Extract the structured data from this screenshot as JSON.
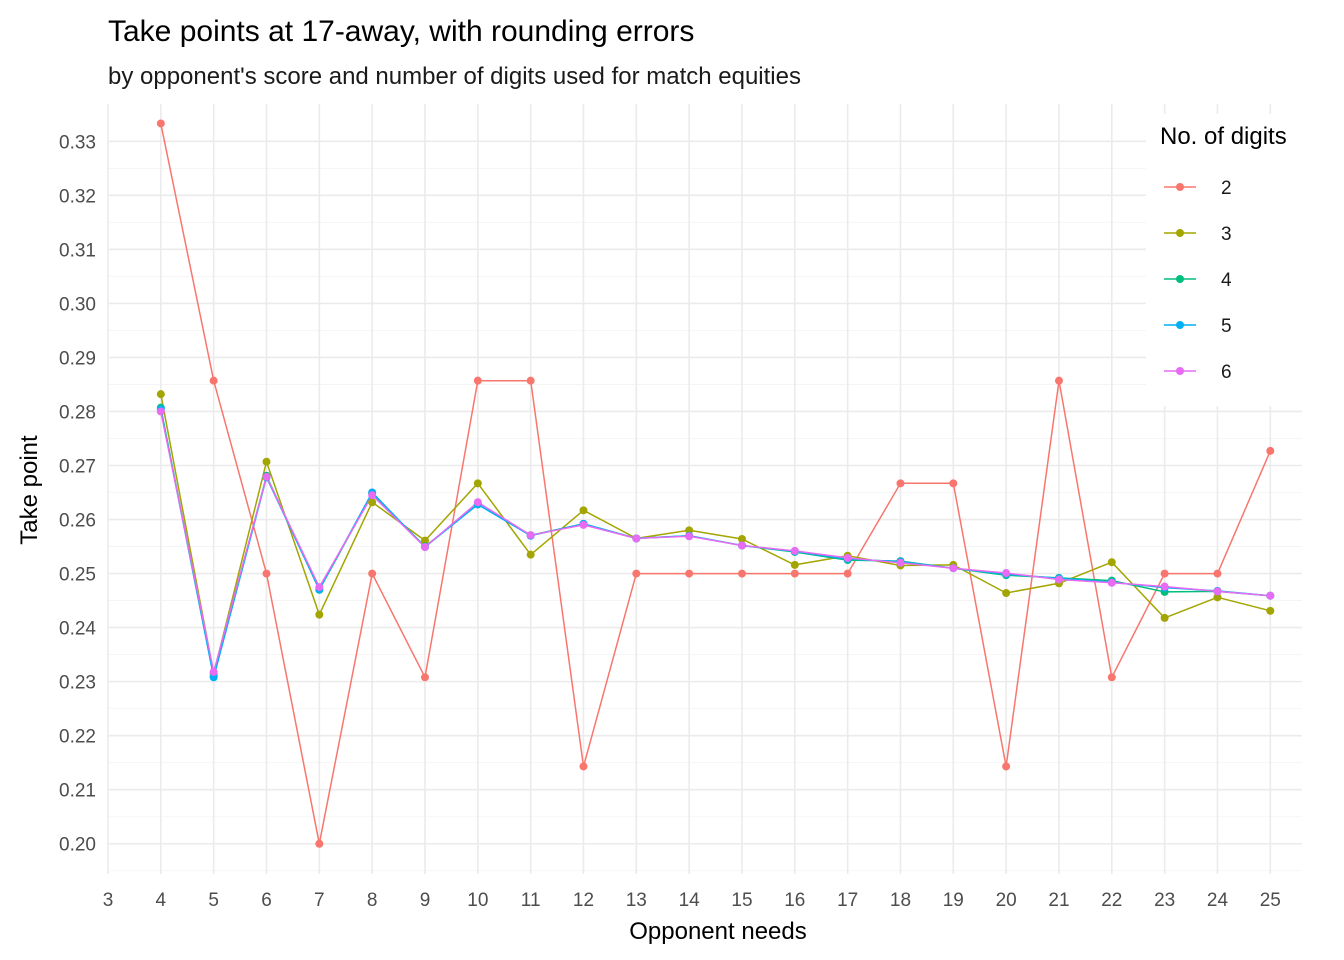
{
  "chart_data": {
    "type": "line",
    "title": "Take points at 17-away, with rounding errors",
    "subtitle": "by opponent's score and number of digits used for match equities",
    "xlabel": "Opponent needs",
    "ylabel": "Take point",
    "xlim": [
      3,
      25.6
    ],
    "ylim": [
      0.1944,
      0.3369
    ],
    "x_ticks": [
      3,
      4,
      5,
      6,
      7,
      8,
      9,
      10,
      11,
      12,
      13,
      14,
      15,
      16,
      17,
      18,
      19,
      20,
      21,
      22,
      23,
      24,
      25
    ],
    "y_ticks": [
      0.2,
      0.21,
      0.22,
      0.23,
      0.24,
      0.25,
      0.26,
      0.27,
      0.28,
      0.29,
      0.3,
      0.31,
      0.32,
      0.33
    ],
    "grid": true,
    "legend": {
      "title": "No. of digits",
      "position": "right"
    },
    "x": [
      4,
      5,
      6,
      7,
      8,
      9,
      10,
      11,
      12,
      13,
      14,
      15,
      16,
      17,
      18,
      19,
      20,
      21,
      22,
      23,
      24,
      25
    ],
    "series": [
      {
        "name": "2",
        "color": "#F8766D",
        "values": [
          0.3333,
          0.2857,
          0.25,
          0.2,
          0.25,
          0.2308,
          0.2857,
          0.2857,
          0.2143,
          0.25,
          0.25,
          0.25,
          0.25,
          0.25,
          0.2667,
          0.2667,
          0.2143,
          0.2857,
          0.2308,
          0.25,
          0.25,
          0.2727
        ]
      },
      {
        "name": "3",
        "color": "#A3A500",
        "values": [
          0.2832,
          0.2315,
          0.2707,
          0.2424,
          0.2632,
          0.2561,
          0.2667,
          0.2535,
          0.2617,
          0.2565,
          0.258,
          0.2564,
          0.2516,
          0.2533,
          0.2515,
          0.2516,
          0.2464,
          0.2482,
          0.2521,
          0.2418,
          0.2456,
          0.2431
        ]
      },
      {
        "name": "4",
        "color": "#00BF7D",
        "values": [
          0.2807,
          0.231,
          0.2681,
          0.247,
          0.2648,
          0.255,
          0.2628,
          0.2571,
          0.2592,
          0.2565,
          0.257,
          0.2552,
          0.254,
          0.2525,
          0.2523,
          0.251,
          0.2497,
          0.2492,
          0.2487,
          0.2466,
          0.2467,
          0.2459
        ]
      },
      {
        "name": "5",
        "color": "#00B0F6",
        "values": [
          0.2804,
          0.2308,
          0.2678,
          0.2471,
          0.265,
          0.2549,
          0.2628,
          0.257,
          0.2592,
          0.2565,
          0.257,
          0.2552,
          0.2541,
          0.2527,
          0.2522,
          0.251,
          0.2499,
          0.2491,
          0.2484,
          0.2474,
          0.2468,
          0.2459
        ]
      },
      {
        "name": "6",
        "color": "#E76BF3",
        "values": [
          0.28,
          0.2318,
          0.2679,
          0.2475,
          0.2645,
          0.2549,
          0.2632,
          0.2571,
          0.259,
          0.2565,
          0.2569,
          0.2552,
          0.2542,
          0.2529,
          0.252,
          0.251,
          0.2501,
          0.2489,
          0.2483,
          0.2476,
          0.2467,
          0.2459
        ]
      }
    ]
  }
}
